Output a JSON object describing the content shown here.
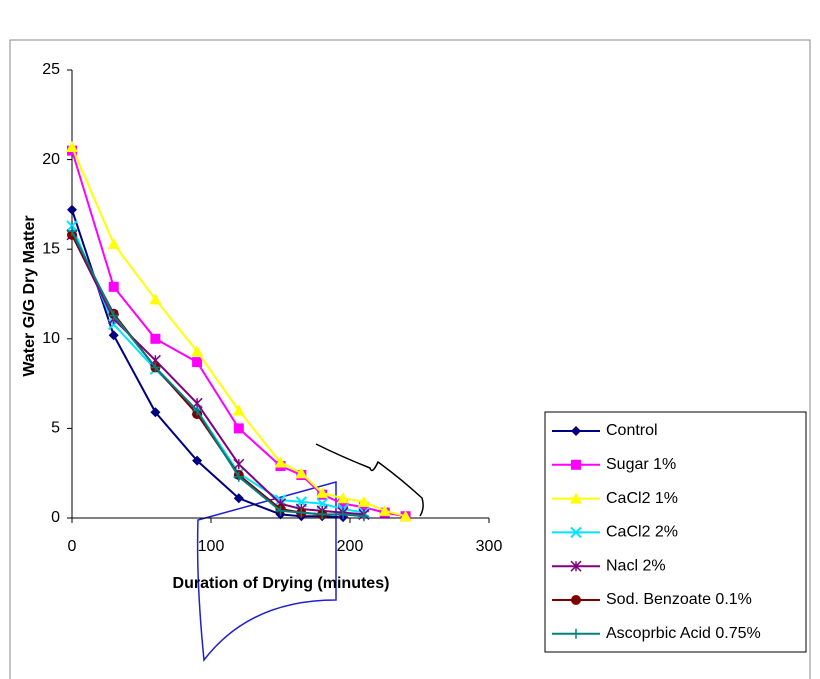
{
  "chart_data": {
    "type": "line",
    "xlabel": "Duration of Drying (minutes)",
    "ylabel": "Water G/G Dry Matter",
    "xlim": [
      0,
      300
    ],
    "xticks": [
      0,
      100,
      200,
      300
    ],
    "ylim": [
      0,
      25
    ],
    "yticks": [
      0,
      5,
      10,
      15,
      20,
      25
    ],
    "grid": false,
    "legend": "right",
    "series": [
      {
        "name": "Control",
        "color": "#000080",
        "marker": "diamond",
        "x": [
          0,
          30,
          60,
          90,
          120,
          150,
          165,
          180,
          195
        ],
        "values": [
          17.2,
          10.2,
          5.9,
          3.2,
          1.1,
          0.2,
          0.1,
          0.1,
          0.05
        ]
      },
      {
        "name": "Sugar 1%",
        "color": "#ff00ff",
        "marker": "square",
        "x": [
          0,
          30,
          60,
          90,
          120,
          150,
          165,
          180,
          195,
          210,
          225,
          240
        ],
        "values": [
          20.5,
          12.9,
          10,
          8.7,
          5,
          2.9,
          2.4,
          1.3,
          0.8,
          0.6,
          0.3,
          0.1
        ]
      },
      {
        "name": "CaCl2 1%",
        "color": "#ffff00",
        "marker": "triangle",
        "x": [
          0,
          30,
          60,
          90,
          120,
          150,
          165,
          180,
          195,
          210,
          225,
          240
        ],
        "values": [
          20.7,
          15.3,
          12.2,
          9.3,
          6,
          3.1,
          2.5,
          1.4,
          1.1,
          0.9,
          0.4,
          0.1
        ]
      },
      {
        "name": "CaCl2 2%",
        "color": "#00e5ff",
        "marker": "x",
        "x": [
          0,
          30,
          60,
          90,
          120,
          150,
          165,
          180,
          195,
          210
        ],
        "values": [
          16.3,
          10.8,
          8.3,
          6,
          2.5,
          1,
          0.9,
          0.8,
          0.5,
          0.3
        ]
      },
      {
        "name": "Nacl 2%",
        "color": "#800080",
        "marker": "star",
        "x": [
          0,
          30,
          60,
          90,
          120,
          150,
          165,
          180,
          195,
          210
        ],
        "values": [
          15.8,
          11.1,
          8.8,
          6.4,
          3,
          0.8,
          0.5,
          0.4,
          0.3,
          0.2
        ]
      },
      {
        "name": "Sod. Benzoate 0.1%",
        "color": "#800000",
        "marker": "circle",
        "x": [
          0,
          30,
          60,
          90,
          120,
          150,
          165,
          180
        ],
        "values": [
          15.8,
          11.4,
          8.4,
          5.8,
          2.4,
          0.5,
          0.3,
          0.2
        ]
      },
      {
        "name": "Ascoprbic Acid 0.75%",
        "color": "#008080",
        "marker": "plus",
        "x": [
          0,
          30,
          60,
          90,
          120,
          150,
          165,
          180,
          195,
          210
        ],
        "values": [
          16,
          11.3,
          8.4,
          6,
          2.3,
          0.4,
          0.3,
          0.2,
          0.2,
          0.1
        ]
      }
    ]
  }
}
